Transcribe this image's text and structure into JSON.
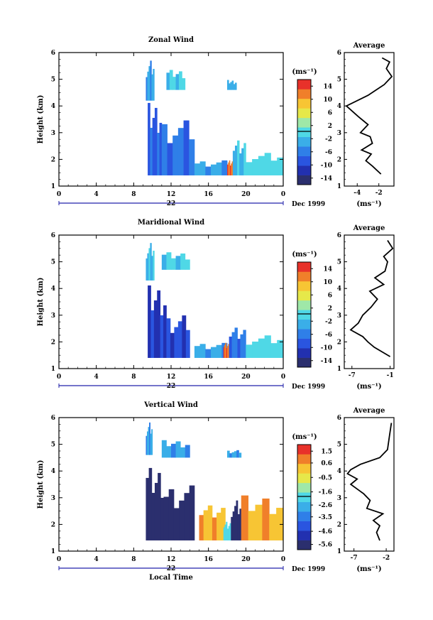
{
  "chart_data": [
    {
      "type": "heatmap",
      "title": "Zonal Wind",
      "ylabel": "Height (km)",
      "xlim": [
        0,
        24
      ],
      "ylim": [
        1,
        6
      ],
      "x_ticks": [
        "0",
        "4",
        "8",
        "12",
        "16",
        "20",
        "0"
      ],
      "y_ticks": [
        "1",
        "2",
        "3",
        "4",
        "5",
        "6"
      ],
      "date_day": "22",
      "date_label": "Dec 1999",
      "colorbar": {
        "unit": "(ms⁻¹)",
        "range": [
          -16,
          16
        ],
        "tick_labels": [
          "14",
          "10",
          "6",
          "2",
          "-2",
          "-6",
          "-10",
          "-14"
        ],
        "tick_values": [
          14,
          10,
          6,
          2,
          -2,
          -6,
          -10,
          -14
        ]
      },
      "data_regions": [
        {
          "x": [
            9.3,
            10.2
          ],
          "y": [
            4.2,
            5.8
          ],
          "value": -4
        },
        {
          "x": [
            9.5,
            11.0
          ],
          "y": [
            1.4,
            4.3
          ],
          "value": -8
        },
        {
          "x": [
            11.0,
            14.5
          ],
          "y": [
            1.4,
            3.6
          ],
          "value": -6
        },
        {
          "x": [
            11.5,
            13.5
          ],
          "y": [
            4.6,
            5.4
          ],
          "value": -1
        },
        {
          "x": [
            14.5,
            18.0
          ],
          "y": [
            1.4,
            2.0
          ],
          "value": -4
        },
        {
          "x": [
            18.0,
            18.6
          ],
          "y": [
            1.4,
            2.0
          ],
          "value": 12
        },
        {
          "x": [
            18.6,
            20.0
          ],
          "y": [
            1.4,
            2.9
          ],
          "value": -2
        },
        {
          "x": [
            20.0,
            24.0
          ],
          "y": [
            1.4,
            2.3
          ],
          "value": 0
        },
        {
          "x": [
            18.0,
            19.0
          ],
          "y": [
            4.6,
            5.0
          ],
          "value": -3
        }
      ],
      "profile": {
        "title": "Average",
        "xlabel": "(ms⁻¹)",
        "x_ticks": [
          "-4",
          "-2"
        ],
        "xlim": [
          -5.2,
          -0.6
        ],
        "points": [
          [
            -1.8,
            1.45
          ],
          [
            -2.6,
            1.75
          ],
          [
            -3.2,
            1.95
          ],
          [
            -2.7,
            2.2
          ],
          [
            -3.6,
            2.35
          ],
          [
            -2.6,
            2.6
          ],
          [
            -2.8,
            2.85
          ],
          [
            -3.7,
            3.0
          ],
          [
            -3.0,
            3.3
          ],
          [
            -3.9,
            3.6
          ],
          [
            -5.0,
            4.0
          ],
          [
            -3.0,
            4.4
          ],
          [
            -1.5,
            4.8
          ],
          [
            -0.8,
            5.1
          ],
          [
            -1.3,
            5.4
          ],
          [
            -1.0,
            5.65
          ],
          [
            -1.7,
            5.8
          ]
        ]
      }
    },
    {
      "type": "heatmap",
      "title": "Maridional Wind",
      "ylabel": "Height (km)",
      "xlim": [
        0,
        24
      ],
      "ylim": [
        1,
        6
      ],
      "x_ticks": [
        "0",
        "4",
        "8",
        "12",
        "16",
        "20",
        "0"
      ],
      "y_ticks": [
        "1",
        "2",
        "3",
        "4",
        "5",
        "6"
      ],
      "date_day": "22",
      "date_label": "Dec 1999",
      "colorbar": {
        "unit": "(ms⁻¹)",
        "range": [
          -16,
          16
        ],
        "tick_labels": [
          "14",
          "10",
          "6",
          "2",
          "-2",
          "-6",
          "-10",
          "-14"
        ],
        "tick_values": [
          14,
          10,
          6,
          2,
          -2,
          -6,
          -10,
          -14
        ]
      },
      "data_regions": [
        {
          "x": [
            9.3,
            10.2
          ],
          "y": [
            4.3,
            5.8
          ],
          "value": -2
        },
        {
          "x": [
            9.5,
            11.5
          ],
          "y": [
            1.4,
            4.3
          ],
          "value": -11
        },
        {
          "x": [
            11.5,
            14.0
          ],
          "y": [
            1.4,
            3.1
          ],
          "value": -9
        },
        {
          "x": [
            11.0,
            14.0
          ],
          "y": [
            4.7,
            5.4
          ],
          "value": -1
        },
        {
          "x": [
            14.5,
            18.0
          ],
          "y": [
            1.4,
            2.0
          ],
          "value": -4
        },
        {
          "x": [
            17.6,
            18.2
          ],
          "y": [
            1.4,
            2.0
          ],
          "value": 12
        },
        {
          "x": [
            18.2,
            20.0
          ],
          "y": [
            1.4,
            2.7
          ],
          "value": -7
        },
        {
          "x": [
            20.0,
            24.0
          ],
          "y": [
            1.4,
            2.3
          ],
          "value": 0
        }
      ],
      "profile": {
        "title": "Average",
        "xlabel": "(ms⁻¹)",
        "x_ticks": [
          "-7",
          "-1"
        ],
        "xlim": [
          -8.2,
          -0.4
        ],
        "points": [
          [
            -1.0,
            1.45
          ],
          [
            -3.5,
            1.8
          ],
          [
            -4.5,
            2.0
          ],
          [
            -5.3,
            2.2
          ],
          [
            -7.2,
            2.45
          ],
          [
            -6.0,
            2.7
          ],
          [
            -5.3,
            3.0
          ],
          [
            -4.0,
            3.3
          ],
          [
            -3.0,
            3.6
          ],
          [
            -4.2,
            3.9
          ],
          [
            -2.0,
            4.15
          ],
          [
            -3.4,
            4.4
          ],
          [
            -1.8,
            4.65
          ],
          [
            -1.4,
            5.0
          ],
          [
            -2.0,
            5.2
          ],
          [
            -0.6,
            5.5
          ],
          [
            -1.4,
            5.8
          ]
        ]
      }
    },
    {
      "type": "heatmap",
      "title": "Vertical Wind",
      "ylabel": "Height (km)",
      "xlabel": "Local Time",
      "xlim": [
        0,
        24
      ],
      "ylim": [
        1,
        6
      ],
      "x_ticks": [
        "0",
        "4",
        "8",
        "12",
        "16",
        "20",
        "0"
      ],
      "y_ticks": [
        "1",
        "2",
        "3",
        "4",
        "5",
        "6"
      ],
      "date_day": "22",
      "date_label": "Dec 1999",
      "colorbar": {
        "unit": "(ms⁻¹)",
        "range": [
          -6.0,
          2.0
        ],
        "tick_labels": [
          "1.5",
          "0.6",
          "-0.5",
          "-1.6",
          "-2.6",
          "-3.5",
          "-4.6",
          "-5.6"
        ],
        "tick_values": [
          1.5,
          0.6,
          -0.5,
          -1.6,
          -2.6,
          -3.5,
          -4.6,
          -5.6
        ]
      },
      "data_regions": [
        {
          "x": [
            9.3,
            10.0
          ],
          "y": [
            4.6,
            5.9
          ],
          "value": -3.0
        },
        {
          "x": [
            11.0,
            14.0
          ],
          "y": [
            4.5,
            5.2
          ],
          "value": -3.0
        },
        {
          "x": [
            18.0,
            19.5
          ],
          "y": [
            4.5,
            4.8
          ],
          "value": -3.0
        },
        {
          "x": [
            9.3,
            11.2
          ],
          "y": [
            1.4,
            4.3
          ],
          "value": -5.8
        },
        {
          "x": [
            11.2,
            14.5
          ],
          "y": [
            1.4,
            3.6
          ],
          "value": -5.6
        },
        {
          "x": [
            15.0,
            17.8
          ],
          "y": [
            1.4,
            2.8
          ],
          "value": 0.5
        },
        {
          "x": [
            17.6,
            18.4
          ],
          "y": [
            1.4,
            2.2
          ],
          "value": -2.0
        },
        {
          "x": [
            18.4,
            19.5
          ],
          "y": [
            1.4,
            3.0
          ],
          "value": -5.6
        },
        {
          "x": [
            19.5,
            24.0
          ],
          "y": [
            1.4,
            3.2
          ],
          "value": 0.5
        }
      ],
      "profile": {
        "title": "Average",
        "xlabel": "(ms⁻¹)",
        "x_ticks": [
          "-7",
          "-2"
        ],
        "xlim": [
          -8.5,
          -0.8
        ],
        "points": [
          [
            -3.0,
            1.4
          ],
          [
            -3.5,
            1.7
          ],
          [
            -3.0,
            1.95
          ],
          [
            -4.0,
            2.15
          ],
          [
            -2.5,
            2.4
          ],
          [
            -5.0,
            2.6
          ],
          [
            -4.5,
            2.9
          ],
          [
            -5.5,
            3.15
          ],
          [
            -7.5,
            3.5
          ],
          [
            -6.5,
            3.7
          ],
          [
            -8.0,
            3.9
          ],
          [
            -7.5,
            4.05
          ],
          [
            -6.0,
            4.25
          ],
          [
            -3.0,
            4.5
          ],
          [
            -1.8,
            4.8
          ],
          [
            -1.5,
            5.3
          ],
          [
            -1.2,
            5.8
          ]
        ]
      }
    }
  ]
}
